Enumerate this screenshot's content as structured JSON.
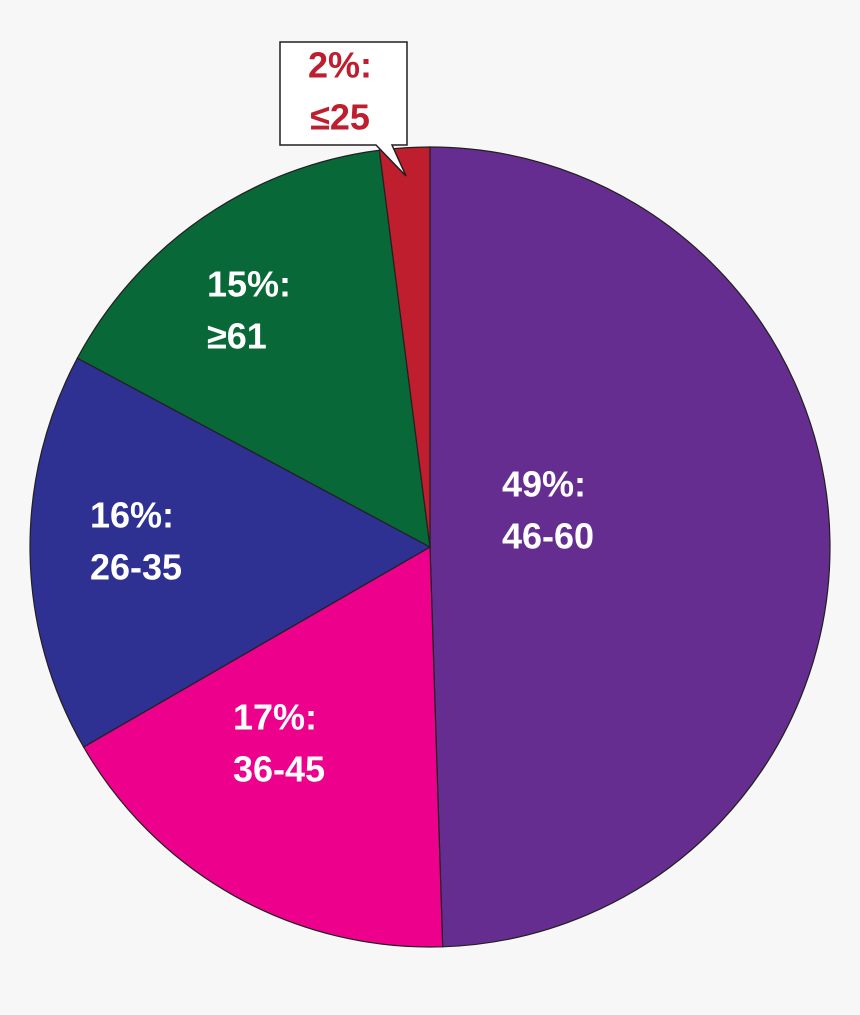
{
  "chart_data": {
    "type": "pie",
    "categories": [
      "46-60",
      "36-45",
      "26-35",
      "≥61",
      "≤25"
    ],
    "values": [
      49,
      17,
      16,
      15,
      2
    ],
    "value_labels": [
      "49%:",
      "17%:",
      "16%:",
      "15%:",
      "2%:"
    ],
    "colors": [
      "#662d91",
      "#ec008c",
      "#2e3192",
      "#086838",
      "#be1e2d"
    ]
  }
}
